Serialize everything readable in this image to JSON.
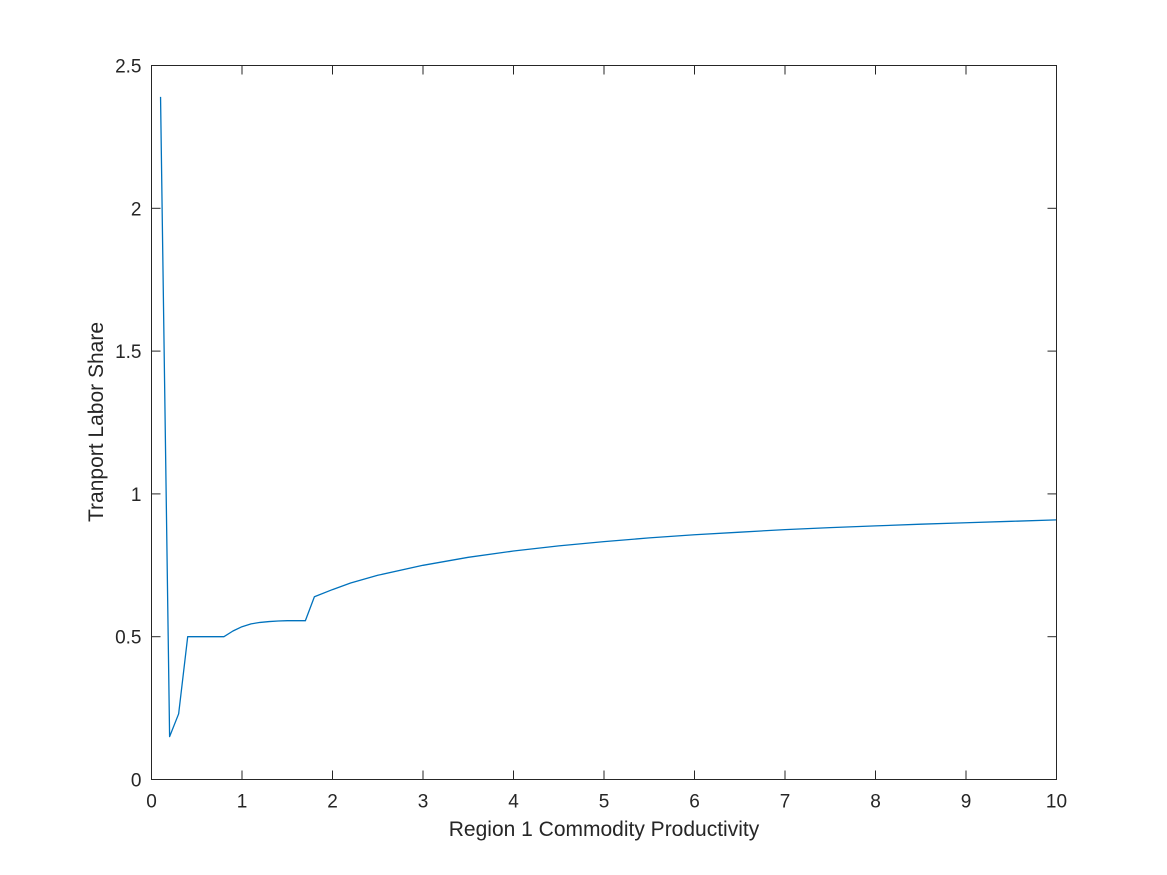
{
  "chart_data": {
    "type": "line",
    "title": "",
    "xlabel": "Region 1 Commodity Productivity",
    "ylabel": "Tranport Labor Share",
    "xlim": [
      0,
      10
    ],
    "ylim": [
      0,
      2.5
    ],
    "xticks": [
      0,
      1,
      2,
      3,
      4,
      5,
      6,
      7,
      8,
      9,
      10
    ],
    "yticks": [
      0,
      0.5,
      1,
      1.5,
      2,
      2.5
    ],
    "xtick_labels": [
      "0",
      "1",
      "2",
      "3",
      "4",
      "5",
      "6",
      "7",
      "8",
      "9",
      "10"
    ],
    "ytick_labels": [
      "0",
      "0.5",
      "1",
      "1.5",
      "2",
      "2.5"
    ],
    "grid": false,
    "box": true,
    "line_color": "#0072BD",
    "series": [
      {
        "x": [
          0.1,
          0.2,
          0.3,
          0.4,
          0.5,
          0.6,
          0.7,
          0.8,
          0.9,
          1.0,
          1.1,
          1.2,
          1.3,
          1.4,
          1.5,
          1.6,
          1.7,
          1.8,
          2.0,
          2.2,
          2.5,
          3.0,
          3.5,
          4.0,
          4.5,
          5.0,
          5.5,
          6.0,
          6.5,
          7.0,
          7.5,
          8.0,
          8.5,
          9.0,
          9.5,
          10.0
        ],
        "y": [
          2.39,
          0.15,
          0.23,
          0.5,
          0.5,
          0.5,
          0.5,
          0.5,
          0.52,
          0.535,
          0.545,
          0.55,
          0.553,
          0.555,
          0.556,
          0.556,
          0.556,
          0.64,
          0.665,
          0.688,
          0.715,
          0.75,
          0.778,
          0.8,
          0.818,
          0.833,
          0.846,
          0.857,
          0.866,
          0.875,
          0.882,
          0.888,
          0.894,
          0.899,
          0.904,
          0.909
        ]
      }
    ]
  }
}
